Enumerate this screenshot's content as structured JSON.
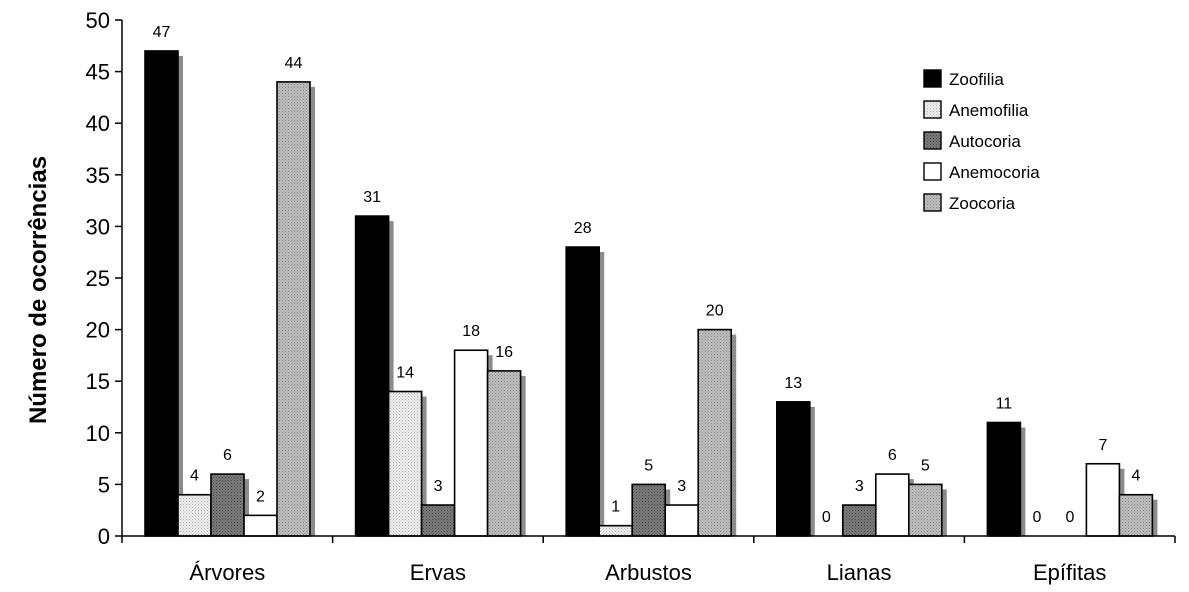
{
  "chart_data": {
    "type": "bar",
    "title": "",
    "xlabel": "",
    "ylabel": "Número de ocorrências",
    "ylim": [
      0,
      50
    ],
    "yticks": [
      0,
      5,
      10,
      15,
      20,
      25,
      30,
      35,
      40,
      45,
      50
    ],
    "grid": false,
    "legend_position": "top-right",
    "categories": [
      "Árvores",
      "Ervas",
      "Arbustos",
      "Lianas",
      "Epífitas"
    ],
    "series": [
      {
        "name": "Zoofilia",
        "values": [
          47,
          31,
          28,
          13,
          11
        ],
        "fill": "#000000",
        "pattern": "solid"
      },
      {
        "name": "Anemofilia",
        "values": [
          4,
          14,
          1,
          0,
          0
        ],
        "fill": "#e0e0e0",
        "pattern": "light-dots"
      },
      {
        "name": "Autocoria",
        "values": [
          6,
          3,
          5,
          3,
          0
        ],
        "fill": "#6e6e6e",
        "pattern": "dark-dots"
      },
      {
        "name": "Anemocoria",
        "values": [
          2,
          18,
          3,
          6,
          7
        ],
        "fill": "#ffffff",
        "pattern": "white"
      },
      {
        "name": "Zoocoria",
        "values": [
          44,
          16,
          20,
          5,
          4
        ],
        "fill": "#b4b4b4",
        "pattern": "medium-dots"
      }
    ],
    "data_label_overrides": [
      {
        "series": 4,
        "category": 0,
        "label": "44"
      },
      {
        "series": 3,
        "category": 1,
        "label": "18"
      }
    ],
    "shadow_color": "#8c8c8c"
  }
}
